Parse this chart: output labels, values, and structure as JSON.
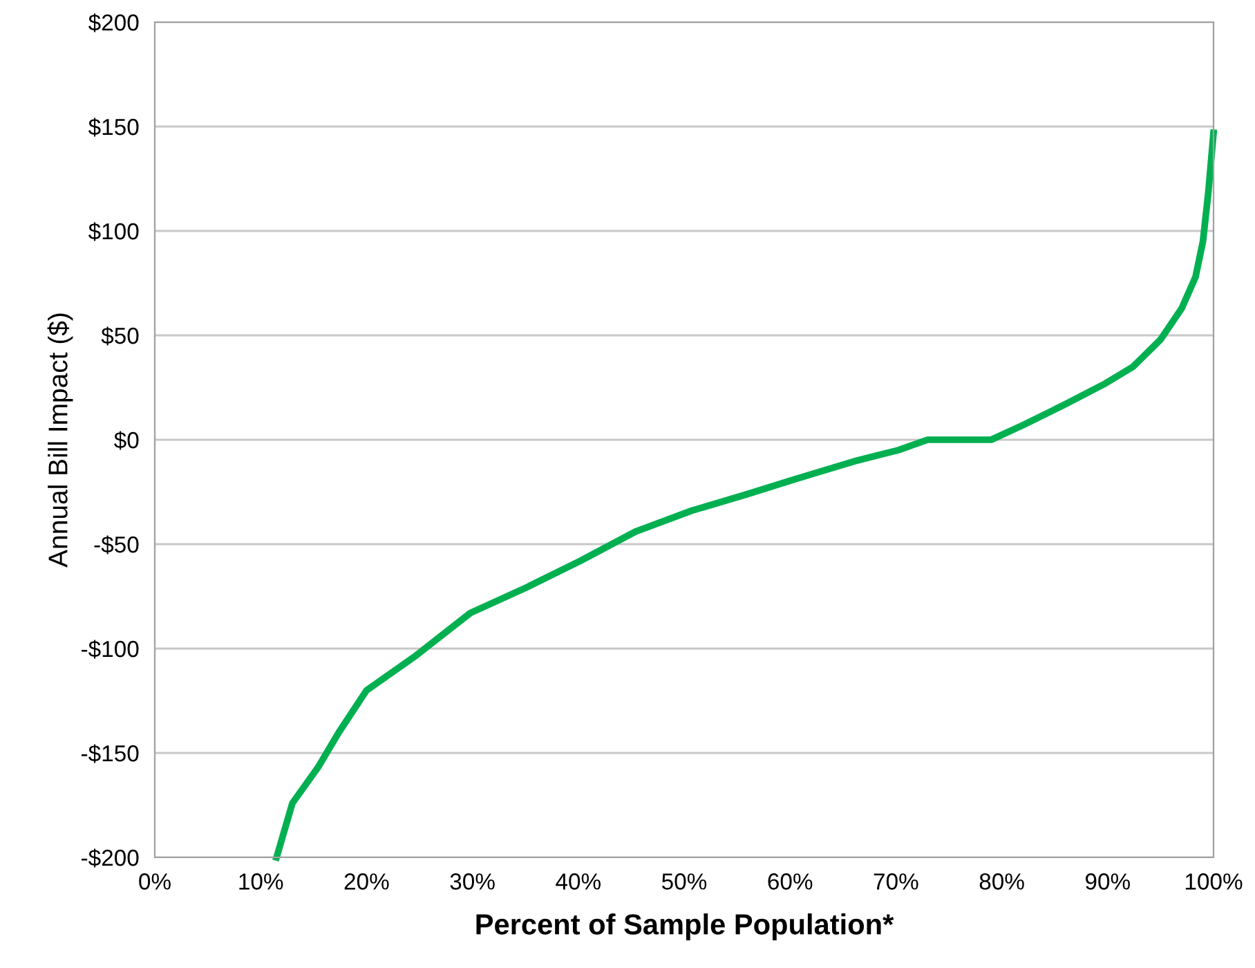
{
  "chart_data": {
    "type": "line",
    "xlabel": "Percent of Sample Population*",
    "ylabel": "Annual Bill Impact ($)",
    "x": [
      11.5,
      13,
      15.4,
      17.4,
      20,
      24.5,
      29.8,
      35,
      40.2,
      45.4,
      50.7,
      56,
      60.4,
      66.3,
      70.2,
      73,
      79,
      82,
      86,
      89.8,
      92.4,
      95,
      97,
      98.3,
      99,
      99.5,
      100
    ],
    "series": [
      {
        "color": "#00b050",
        "values": [
          -200,
          -174,
          -157,
          -140,
          -120,
          -104,
          -83,
          -71,
          -58,
          -44,
          -34,
          -26,
          -19,
          -10,
          -5,
          0,
          0,
          7,
          17,
          27,
          35,
          48,
          63,
          78,
          95,
          118,
          147
        ]
      }
    ],
    "xlim": [
      0,
      100
    ],
    "ylim": [
      -200,
      200
    ],
    "xticks": [
      {
        "value": 0,
        "label": "0%"
      },
      {
        "value": 10,
        "label": "10%"
      },
      {
        "value": 20,
        "label": "20%"
      },
      {
        "value": 30,
        "label": "30%"
      },
      {
        "value": 40,
        "label": "40%"
      },
      {
        "value": 50,
        "label": "50%"
      },
      {
        "value": 60,
        "label": "60%"
      },
      {
        "value": 70,
        "label": "70%"
      },
      {
        "value": 80,
        "label": "80%"
      },
      {
        "value": 90,
        "label": "90%"
      },
      {
        "value": 100,
        "label": "100%"
      }
    ],
    "yticks": [
      {
        "value": -200,
        "label": "-$200"
      },
      {
        "value": -150,
        "label": "-$150"
      },
      {
        "value": -100,
        "label": "-$100"
      },
      {
        "value": -50,
        "label": "-$50"
      },
      {
        "value": 0,
        "label": "$0"
      },
      {
        "value": 50,
        "label": "$50"
      },
      {
        "value": 100,
        "label": "$100"
      },
      {
        "value": 150,
        "label": "$150"
      },
      {
        "value": 200,
        "label": "$200"
      }
    ],
    "grid": "y",
    "legend": false,
    "marker": "none",
    "line_style": "solid"
  }
}
